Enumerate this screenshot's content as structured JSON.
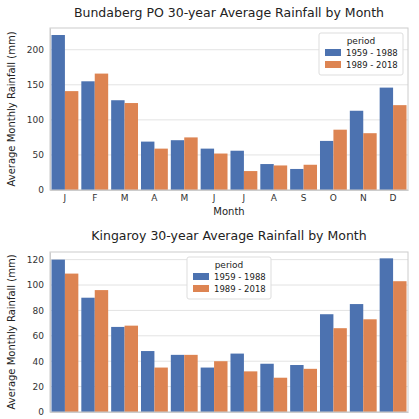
{
  "chart_data": [
    {
      "type": "bar",
      "title": "Bundaberg PO  30-year Average Rainfall by Month",
      "x_label": "Month",
      "y_label": "Average Monthly Rainfall (mm)",
      "categories": [
        "J",
        "F",
        "M",
        "A",
        "M",
        "J",
        "J",
        "A",
        "S",
        "O",
        "N",
        "D"
      ],
      "series": [
        {
          "name": "1959 - 1988",
          "color": "#4c72b0",
          "values": [
            221,
            155,
            128,
            69,
            71,
            59,
            56,
            37,
            30,
            70,
            113,
            146
          ]
        },
        {
          "name": "1989 - 2018",
          "color": "#dd8452",
          "values": [
            141,
            166,
            124,
            59,
            75,
            52,
            27,
            35,
            36,
            86,
            81,
            121
          ]
        }
      ],
      "ylim": [
        0,
        231
      ],
      "yticks": [
        0,
        50,
        100,
        150,
        200
      ],
      "grid": true,
      "legend": "upper right",
      "legend_title": "period"
    },
    {
      "type": "bar",
      "title": "Kingaroy  30-year Average Rainfall by Month",
      "y_label": "Average Monthly Rainfall (mm)",
      "categories": [
        null,
        null,
        null,
        null,
        null,
        null,
        null,
        null,
        null,
        null,
        null,
        null
      ],
      "series": [
        {
          "name": "1959 - 1988",
          "color": "#4c72b0",
          "values": [
            120,
            90,
            67,
            48,
            45,
            35,
            46,
            38,
            37,
            77,
            85,
            121
          ]
        },
        {
          "name": "1989 - 2018",
          "color": "#dd8452",
          "values": [
            109,
            96,
            68,
            35,
            45,
            40,
            32,
            27,
            34,
            66,
            73,
            103
          ]
        }
      ],
      "ylim": [
        0,
        126
      ],
      "yticks": [
        0,
        20,
        40,
        60,
        80,
        100,
        120
      ],
      "grid": true,
      "legend": "upper center",
      "legend_title": "period",
      "tick_labels": "y"
    }
  ]
}
